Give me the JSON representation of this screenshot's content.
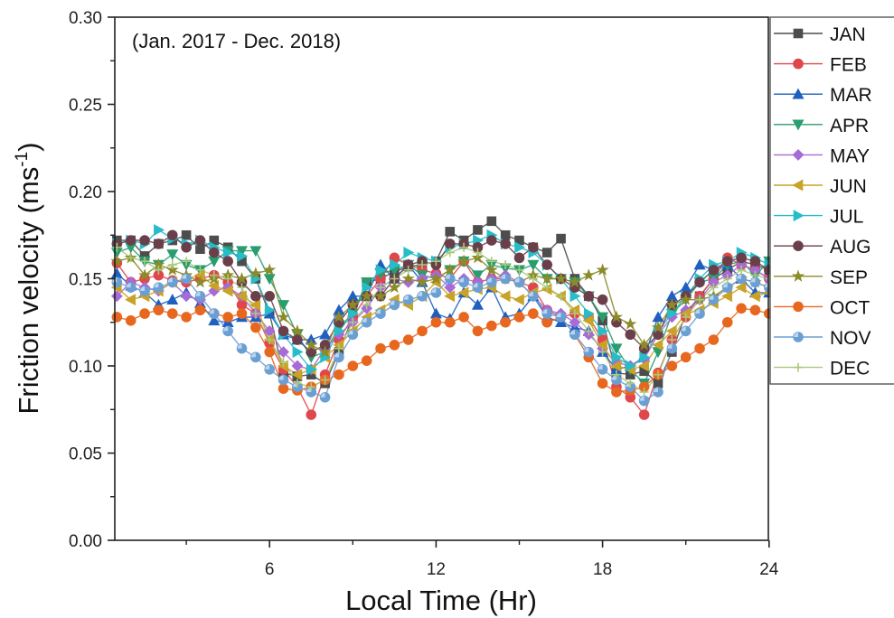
{
  "chart_data": {
    "type": "line",
    "title": "",
    "annotation": "(Jan. 2017 - Dec. 2018)",
    "xlabel": "Local Time (Hr)",
    "ylabel": "Friction velocity (ms",
    "ylabel_superscript": "-1",
    "ylabel_close": ")",
    "xlim": [
      0.5,
      24
    ],
    "ylim": [
      0.0,
      0.3
    ],
    "xticks": [
      6,
      12,
      18,
      24
    ],
    "xtick_labels": [
      "6",
      "12",
      "18",
      "24"
    ],
    "x_minor_ticks": [
      3,
      9,
      15,
      21
    ],
    "yticks": [
      0.0,
      0.05,
      0.1,
      0.15,
      0.2,
      0.25,
      0.3
    ],
    "ytick_labels": [
      "0.00",
      "0.05",
      "0.10",
      "0.15",
      "0.20",
      "0.25",
      "0.30"
    ],
    "y_minor_ticks": [
      0.025,
      0.075,
      0.125,
      0.175,
      0.225,
      0.275
    ],
    "grid": false,
    "legend_position": "right",
    "x": [
      0.5,
      1,
      1.5,
      2,
      2.5,
      3,
      3.5,
      4,
      4.5,
      5,
      5.5,
      6,
      6.5,
      7,
      7.5,
      8,
      8.5,
      9,
      9.5,
      10,
      10.5,
      11,
      11.5,
      12,
      12.5,
      13,
      13.5,
      14,
      14.5,
      15,
      15.5,
      16,
      16.5,
      17,
      17.5,
      18,
      18.5,
      19,
      19.5,
      20,
      20.5,
      21,
      21.5,
      22,
      22.5,
      23,
      23.5,
      24
    ],
    "series": [
      {
        "name": "JAN",
        "color": "#4d4d4d",
        "marker": "square",
        "values": [
          0.172,
          0.172,
          0.163,
          0.17,
          0.172,
          0.175,
          0.167,
          0.172,
          0.168,
          0.16,
          0.15,
          0.13,
          0.096,
          0.094,
          0.095,
          0.09,
          0.108,
          0.128,
          0.148,
          0.15,
          0.154,
          0.157,
          0.158,
          0.16,
          0.177,
          0.172,
          0.178,
          0.183,
          0.175,
          0.172,
          0.168,
          0.165,
          0.173,
          0.15,
          0.14,
          0.126,
          0.096,
          0.095,
          0.097,
          0.09,
          0.108,
          0.13,
          0.14,
          0.15,
          0.155,
          0.16,
          0.158,
          0.155
        ]
      },
      {
        "name": "FEB",
        "color": "#e0474c",
        "marker": "circle",
        "values": [
          0.159,
          0.148,
          0.15,
          0.152,
          0.149,
          0.148,
          0.15,
          0.152,
          0.148,
          0.135,
          0.13,
          0.113,
          0.098,
          0.088,
          0.072,
          0.095,
          0.115,
          0.128,
          0.14,
          0.15,
          0.162,
          0.158,
          0.155,
          0.153,
          0.15,
          0.16,
          0.148,
          0.15,
          0.15,
          0.148,
          0.145,
          0.132,
          0.128,
          0.13,
          0.128,
          0.115,
          0.088,
          0.082,
          0.072,
          0.096,
          0.115,
          0.128,
          0.14,
          0.15,
          0.162,
          0.158,
          0.155,
          0.15
        ]
      },
      {
        "name": "MAR",
        "color": "#1f5fbf",
        "marker": "triangle-up",
        "values": [
          0.153,
          0.146,
          0.142,
          0.135,
          0.138,
          0.142,
          0.136,
          0.126,
          0.125,
          0.128,
          0.128,
          0.13,
          0.118,
          0.115,
          0.115,
          0.118,
          0.132,
          0.14,
          0.14,
          0.158,
          0.15,
          0.158,
          0.148,
          0.13,
          0.127,
          0.142,
          0.135,
          0.145,
          0.128,
          0.13,
          0.14,
          0.128,
          0.125,
          0.122,
          0.12,
          0.108,
          0.098,
          0.1,
          0.105,
          0.128,
          0.14,
          0.145,
          0.158,
          0.155,
          0.158,
          0.15,
          0.142,
          0.142
        ]
      },
      {
        "name": "APR",
        "color": "#2a9d6f",
        "marker": "triangle-down",
        "values": [
          0.165,
          0.168,
          0.16,
          0.158,
          0.164,
          0.158,
          0.155,
          0.16,
          0.166,
          0.166,
          0.166,
          0.15,
          0.135,
          0.118,
          0.105,
          0.108,
          0.122,
          0.13,
          0.148,
          0.153,
          0.155,
          0.158,
          0.152,
          0.15,
          0.155,
          0.16,
          0.152,
          0.158,
          0.156,
          0.155,
          0.158,
          0.15,
          0.15,
          0.148,
          0.14,
          0.128,
          0.11,
          0.098,
          0.09,
          0.108,
          0.13,
          0.138,
          0.148,
          0.15,
          0.158,
          0.16,
          0.152,
          0.16
        ]
      },
      {
        "name": "MAY",
        "color": "#a66bd6",
        "marker": "diamond",
        "values": [
          0.14,
          0.148,
          0.145,
          0.143,
          0.148,
          0.14,
          0.138,
          0.143,
          0.145,
          0.14,
          0.13,
          0.12,
          0.108,
          0.1,
          0.098,
          0.11,
          0.118,
          0.125,
          0.133,
          0.145,
          0.15,
          0.148,
          0.15,
          0.152,
          0.145,
          0.15,
          0.148,
          0.15,
          0.152,
          0.148,
          0.14,
          0.132,
          0.13,
          0.125,
          0.118,
          0.11,
          0.102,
          0.1,
          0.104,
          0.118,
          0.128,
          0.132,
          0.138,
          0.148,
          0.152,
          0.158,
          0.155,
          0.15
        ]
      },
      {
        "name": "JUN",
        "color": "#c9a227",
        "marker": "triangle-left",
        "values": [
          0.145,
          0.138,
          0.14,
          0.143,
          0.148,
          0.15,
          0.152,
          0.146,
          0.143,
          0.14,
          0.135,
          0.115,
          0.1,
          0.095,
          0.098,
          0.105,
          0.112,
          0.12,
          0.128,
          0.132,
          0.138,
          0.135,
          0.14,
          0.148,
          0.14,
          0.142,
          0.144,
          0.145,
          0.14,
          0.138,
          0.142,
          0.144,
          0.14,
          0.132,
          0.126,
          0.112,
          0.1,
          0.098,
          0.1,
          0.112,
          0.12,
          0.13,
          0.132,
          0.136,
          0.14,
          0.145,
          0.14,
          0.142
        ]
      },
      {
        "name": "JUL",
        "color": "#26bdc9",
        "marker": "triangle-right",
        "values": [
          0.17,
          0.172,
          0.17,
          0.178,
          0.173,
          0.17,
          0.172,
          0.168,
          0.165,
          0.163,
          0.15,
          0.132,
          0.118,
          0.108,
          0.098,
          0.105,
          0.12,
          0.13,
          0.145,
          0.155,
          0.158,
          0.165,
          0.162,
          0.16,
          0.168,
          0.17,
          0.172,
          0.175,
          0.17,
          0.168,
          0.165,
          0.158,
          0.15,
          0.14,
          0.13,
          0.12,
          0.105,
          0.1,
          0.105,
          0.12,
          0.13,
          0.14,
          0.15,
          0.158,
          0.16,
          0.165,
          0.162,
          0.158
        ]
      },
      {
        "name": "AUG",
        "color": "#6b3f4a",
        "marker": "circle",
        "values": [
          0.17,
          0.172,
          0.172,
          0.17,
          0.175,
          0.168,
          0.172,
          0.165,
          0.16,
          0.148,
          0.14,
          0.14,
          0.12,
          0.115,
          0.108,
          0.112,
          0.125,
          0.135,
          0.14,
          0.14,
          0.15,
          0.158,
          0.16,
          0.158,
          0.17,
          0.17,
          0.168,
          0.172,
          0.17,
          0.162,
          0.168,
          0.158,
          0.15,
          0.145,
          0.14,
          0.138,
          0.125,
          0.118,
          0.11,
          0.118,
          0.135,
          0.14,
          0.148,
          0.155,
          0.16,
          0.162,
          0.16,
          0.155
        ]
      },
      {
        "name": "SEP",
        "color": "#8b8b2a",
        "marker": "star",
        "values": [
          0.16,
          0.162,
          0.152,
          0.158,
          0.155,
          0.152,
          0.148,
          0.15,
          0.152,
          0.15,
          0.153,
          0.155,
          0.128,
          0.12,
          0.112,
          0.108,
          0.128,
          0.135,
          0.14,
          0.14,
          0.145,
          0.15,
          0.148,
          0.15,
          0.155,
          0.16,
          0.162,
          0.155,
          0.15,
          0.148,
          0.152,
          0.15,
          0.15,
          0.148,
          0.152,
          0.155,
          0.128,
          0.124,
          0.112,
          0.122,
          0.135,
          0.138,
          0.138,
          0.14,
          0.145,
          0.15,
          0.148,
          0.145
        ]
      },
      {
        "name": "OCT",
        "color": "#e8671f",
        "marker": "circle",
        "values": [
          0.128,
          0.126,
          0.13,
          0.132,
          0.13,
          0.128,
          0.132,
          0.13,
          0.128,
          0.13,
          0.122,
          0.108,
          0.087,
          0.086,
          0.088,
          0.092,
          0.095,
          0.1,
          0.103,
          0.11,
          0.112,
          0.115,
          0.12,
          0.125,
          0.125,
          0.128,
          0.12,
          0.123,
          0.125,
          0.128,
          0.13,
          0.125,
          0.128,
          0.118,
          0.105,
          0.09,
          0.085,
          0.086,
          0.088,
          0.095,
          0.1,
          0.105,
          0.11,
          0.115,
          0.125,
          0.133,
          0.132,
          0.13
        ]
      },
      {
        "name": "NOV",
        "color": "#6a9fd4",
        "marker": "circle-half",
        "values": [
          0.148,
          0.145,
          0.143,
          0.145,
          0.148,
          0.15,
          0.14,
          0.13,
          0.12,
          0.11,
          0.105,
          0.098,
          0.092,
          0.088,
          0.085,
          0.082,
          0.105,
          0.118,
          0.125,
          0.13,
          0.135,
          0.138,
          0.14,
          0.142,
          0.15,
          0.148,
          0.145,
          0.148,
          0.15,
          0.148,
          0.14,
          0.13,
          0.128,
          0.118,
          0.108,
          0.098,
          0.092,
          0.088,
          0.08,
          0.085,
          0.11,
          0.12,
          0.13,
          0.138,
          0.145,
          0.15,
          0.148,
          0.145
        ]
      },
      {
        "name": "DEC",
        "color": "#a8c97a",
        "marker": "plus",
        "values": [
          0.168,
          0.162,
          0.16,
          0.155,
          0.158,
          0.16,
          0.155,
          0.152,
          0.15,
          0.145,
          0.13,
          0.115,
          0.102,
          0.09,
          0.088,
          0.092,
          0.11,
          0.125,
          0.135,
          0.145,
          0.15,
          0.155,
          0.158,
          0.16,
          0.165,
          0.168,
          0.165,
          0.16,
          0.158,
          0.155,
          0.15,
          0.145,
          0.14,
          0.13,
          0.12,
          0.108,
          0.095,
          0.09,
          0.085,
          0.095,
          0.115,
          0.128,
          0.138,
          0.145,
          0.15,
          0.155,
          0.152,
          0.15
        ]
      }
    ]
  }
}
